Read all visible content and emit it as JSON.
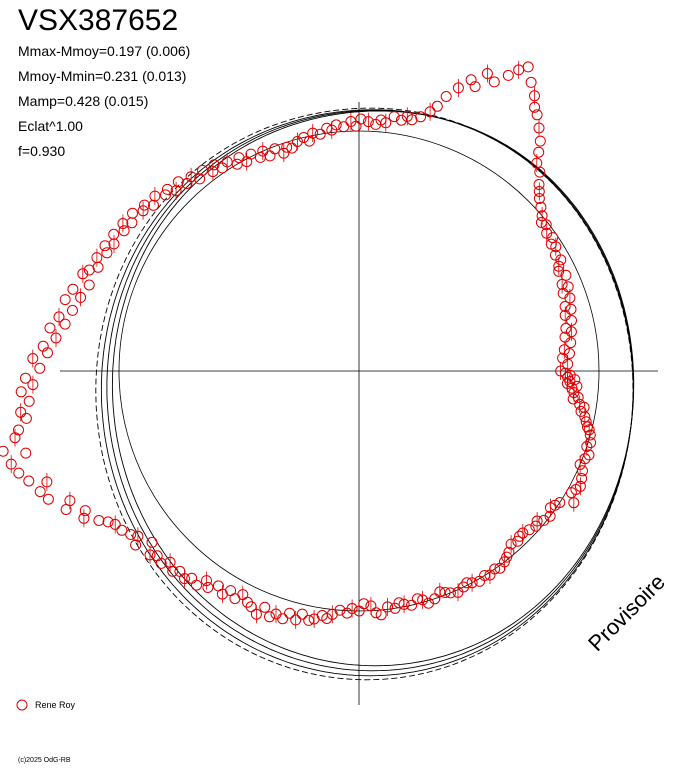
{
  "chart_data": {
    "type": "scatter",
    "title": "VSX387652",
    "stats": [
      "Mmax-Mmoy=0.197 (0.006)",
      "Mmoy-Mmin=0.231 (0.013)",
      "Mamp=0.428 (0.015)",
      "Eclat^1.00",
      "f=0.930"
    ],
    "legend": "Rene Roy",
    "watermark": "Provisoire",
    "copyright": "(c)2025 OdG-RB",
    "series_color": "#dd0000",
    "phase_points": [
      [
        0.0,
        0.84
      ],
      [
        0.01,
        0.86
      ],
      [
        0.02,
        0.88
      ],
      [
        0.03,
        0.87
      ],
      [
        0.04,
        0.9
      ],
      [
        0.05,
        0.88
      ],
      [
        0.06,
        0.87
      ],
      [
        0.07,
        0.91
      ],
      [
        0.08,
        0.89
      ],
      [
        0.1,
        0.9
      ],
      [
        0.12,
        0.92
      ],
      [
        0.13,
        0.9
      ],
      [
        0.15,
        0.93
      ],
      [
        0.16,
        0.95
      ],
      [
        0.18,
        0.94
      ],
      [
        0.2,
        0.96
      ],
      [
        0.22,
        0.97
      ],
      [
        0.24,
        0.98
      ],
      [
        0.25,
        0.99
      ],
      [
        0.27,
        1.0
      ],
      [
        0.3,
        1.01
      ],
      [
        0.32,
        1.0
      ],
      [
        0.35,
        1.02
      ],
      [
        0.37,
        1.01
      ],
      [
        0.4,
        1.0
      ],
      [
        0.42,
        1.02
      ],
      [
        0.45,
        1.03
      ],
      [
        0.48,
        1.04
      ],
      [
        0.5,
        1.03
      ],
      [
        0.52,
        1.02
      ],
      [
        0.55,
        1.05
      ],
      [
        0.58,
        1.0
      ],
      [
        0.6,
        0.99
      ],
      [
        0.62,
        0.98
      ],
      [
        0.65,
        1.0
      ],
      [
        0.68,
        0.99
      ],
      [
        0.7,
        0.97
      ],
      [
        0.72,
        0.98
      ],
      [
        0.75,
        0.97
      ],
      [
        0.78,
        0.96
      ],
      [
        0.8,
        0.96
      ],
      [
        0.82,
        0.97
      ],
      [
        0.85,
        0.96
      ],
      [
        0.88,
        0.98
      ],
      [
        0.9,
        0.99
      ],
      [
        0.92,
        1.0
      ],
      [
        0.95,
        1.01
      ],
      [
        0.97,
        1.0
      ],
      [
        1.0,
        1.01
      ],
      [
        1.02,
        1.0
      ],
      [
        1.05,
        1.01
      ],
      [
        1.08,
        1.0
      ],
      [
        1.1,
        0.99
      ],
      [
        1.12,
        1.0
      ],
      [
        1.15,
        1.01
      ],
      [
        1.18,
        1.0
      ],
      [
        1.2,
        0.99
      ],
      [
        1.22,
        0.98
      ],
      [
        1.25,
        1.0
      ],
      [
        1.28,
        1.01
      ],
      [
        1.3,
        0.99
      ],
      [
        1.32,
        0.98
      ],
      [
        1.35,
        1.0
      ],
      [
        1.38,
        0.99
      ],
      [
        1.4,
        0.98
      ],
      [
        1.42,
        1.0
      ],
      [
        1.45,
        0.99
      ],
      [
        1.48,
        1.02
      ],
      [
        1.5,
        1.01
      ],
      [
        1.52,
        0.98
      ],
      [
        1.55,
        0.97
      ],
      [
        1.57,
        1.0
      ],
      [
        1.6,
        0.99
      ],
      [
        1.62,
        1.01
      ],
      [
        1.65,
        1.0
      ],
      [
        1.68,
        1.02
      ],
      [
        1.7,
        1.04
      ],
      [
        1.72,
        1.03
      ],
      [
        1.75,
        1.05
      ],
      [
        1.77,
        1.06
      ],
      [
        1.8,
        1.04
      ],
      [
        1.82,
        1.07
      ],
      [
        1.85,
        1.05
      ],
      [
        1.87,
        1.08
      ],
      [
        1.9,
        1.07
      ],
      [
        1.92,
        1.09
      ],
      [
        1.95,
        1.06
      ],
      [
        1.97,
        1.1
      ],
      [
        2.0,
        1.08
      ],
      [
        2.02,
        1.07
      ],
      [
        2.05,
        1.05
      ],
      [
        2.07,
        1.08
      ],
      [
        2.1,
        1.06
      ],
      [
        2.12,
        1.09
      ],
      [
        2.15,
        1.07
      ],
      [
        2.18,
        1.1
      ],
      [
        2.2,
        1.08
      ],
      [
        2.22,
        1.12
      ],
      [
        2.25,
        1.11
      ],
      [
        2.27,
        1.13
      ],
      [
        2.3,
        1.12
      ],
      [
        2.32,
        1.14
      ],
      [
        2.35,
        1.12
      ],
      [
        2.37,
        1.15
      ],
      [
        2.4,
        1.14
      ],
      [
        2.42,
        1.16
      ],
      [
        2.45,
        1.12
      ],
      [
        2.48,
        1.18
      ],
      [
        2.5,
        1.15
      ],
      [
        2.52,
        1.17
      ],
      [
        2.55,
        1.19
      ],
      [
        2.58,
        1.2
      ],
      [
        2.6,
        1.22
      ],
      [
        2.62,
        1.25
      ],
      [
        2.65,
        1.3
      ],
      [
        2.67,
        1.28
      ],
      [
        2.7,
        1.35
      ],
      [
        2.72,
        1.32
      ],
      [
        2.75,
        1.4
      ],
      [
        2.78,
        1.42
      ],
      [
        2.8,
        1.38
      ],
      [
        2.82,
        1.45
      ],
      [
        2.85,
        1.48
      ],
      [
        2.88,
        1.5
      ],
      [
        2.9,
        1.43
      ],
      [
        2.92,
        1.52
      ],
      [
        2.95,
        1.46
      ],
      [
        2.97,
        1.44
      ],
      [
        3.0,
        1.4
      ],
      [
        3.02,
        1.42
      ],
      [
        3.05,
        1.38
      ],
      [
        3.08,
        1.41
      ],
      [
        3.1,
        1.36
      ],
      [
        3.12,
        1.39
      ],
      [
        3.15,
        1.33
      ],
      [
        3.18,
        1.36
      ],
      [
        3.2,
        1.3
      ],
      [
        3.22,
        1.32
      ],
      [
        3.25,
        1.27
      ],
      [
        3.28,
        1.3
      ],
      [
        3.3,
        1.24
      ],
      [
        3.32,
        1.27
      ],
      [
        3.35,
        1.22
      ],
      [
        3.38,
        1.26
      ],
      [
        3.4,
        1.2
      ],
      [
        3.42,
        1.24
      ],
      [
        3.45,
        1.18
      ],
      [
        3.48,
        1.22
      ],
      [
        3.5,
        1.2
      ],
      [
        3.52,
        1.17
      ],
      [
        3.55,
        1.19
      ],
      [
        3.58,
        1.16
      ],
      [
        3.6,
        1.18
      ],
      [
        3.62,
        1.15
      ],
      [
        3.65,
        1.17
      ],
      [
        3.68,
        1.14
      ],
      [
        3.7,
        1.16
      ],
      [
        3.72,
        1.13
      ],
      [
        3.75,
        1.15
      ],
      [
        3.78,
        1.12
      ],
      [
        3.8,
        1.13
      ],
      [
        3.82,
        1.1
      ],
      [
        3.85,
        1.12
      ],
      [
        3.88,
        1.09
      ],
      [
        3.9,
        1.1
      ],
      [
        3.92,
        1.07
      ],
      [
        3.95,
        1.09
      ],
      [
        3.97,
        1.06
      ],
      [
        4.0,
        1.07
      ],
      [
        4.02,
        1.04
      ],
      [
        4.05,
        1.06
      ],
      [
        4.08,
        1.03
      ],
      [
        4.1,
        1.05
      ],
      [
        4.12,
        1.02
      ],
      [
        4.15,
        1.03
      ],
      [
        4.18,
        1.0
      ],
      [
        4.2,
        1.02
      ],
      [
        4.22,
        0.99
      ],
      [
        4.25,
        1.01
      ],
      [
        4.28,
        0.98
      ],
      [
        4.3,
        1.0
      ],
      [
        4.32,
        0.97
      ],
      [
        4.35,
        0.99
      ],
      [
        4.38,
        0.96
      ],
      [
        4.4,
        0.98
      ],
      [
        4.42,
        0.97
      ],
      [
        4.45,
        0.99
      ],
      [
        4.48,
        1.0
      ],
      [
        4.5,
        0.98
      ],
      [
        4.52,
        1.01
      ],
      [
        4.55,
        1.0
      ],
      [
        4.58,
        1.02
      ],
      [
        4.6,
        1.01
      ],
      [
        4.62,
        1.03
      ],
      [
        4.65,
        1.02
      ],
      [
        4.68,
        1.04
      ],
      [
        4.7,
        1.02
      ],
      [
        4.72,
        1.05
      ],
      [
        4.75,
        1.04
      ],
      [
        4.78,
        1.03
      ],
      [
        4.8,
        1.05
      ],
      [
        4.82,
        1.04
      ],
      [
        4.85,
        1.07
      ],
      [
        4.88,
        1.06
      ],
      [
        4.9,
        1.08
      ],
      [
        4.92,
        1.07
      ],
      [
        4.95,
        1.09
      ],
      [
        4.98,
        1.12
      ],
      [
        5.0,
        1.15
      ],
      [
        5.02,
        1.2
      ],
      [
        5.05,
        1.25
      ],
      [
        5.08,
        1.3
      ],
      [
        5.1,
        1.28
      ],
      [
        5.12,
        1.35
      ],
      [
        5.15,
        1.33
      ],
      [
        5.18,
        1.38
      ],
      [
        5.2,
        1.42
      ],
      [
        5.22,
        1.45
      ],
      [
        5.25,
        1.4
      ],
      [
        5.28,
        1.36
      ],
      [
        5.3,
        1.32
      ],
      [
        5.32,
        1.3
      ],
      [
        5.35,
        1.26
      ],
      [
        5.38,
        1.22
      ],
      [
        5.4,
        1.18
      ],
      [
        5.42,
        1.14
      ],
      [
        5.45,
        1.12
      ],
      [
        5.48,
        1.08
      ],
      [
        5.5,
        1.06
      ],
      [
        5.52,
        1.04
      ],
      [
        5.55,
        1.02
      ],
      [
        5.58,
        1.0
      ],
      [
        5.6,
        0.98
      ],
      [
        5.62,
        0.99
      ],
      [
        5.65,
        0.97
      ],
      [
        5.68,
        0.98
      ],
      [
        5.7,
        0.96
      ],
      [
        5.72,
        0.97
      ],
      [
        5.75,
        0.95
      ],
      [
        5.78,
        0.96
      ],
      [
        5.8,
        0.94
      ],
      [
        5.82,
        0.93
      ],
      [
        5.85,
        0.95
      ],
      [
        5.88,
        0.92
      ],
      [
        5.9,
        0.94
      ],
      [
        5.92,
        0.91
      ],
      [
        5.95,
        0.93
      ],
      [
        5.98,
        0.9
      ],
      [
        6.0,
        0.92
      ],
      [
        6.02,
        0.89
      ],
      [
        6.05,
        0.91
      ],
      [
        6.08,
        0.88
      ],
      [
        6.1,
        0.9
      ],
      [
        6.12,
        0.87
      ],
      [
        6.15,
        0.89
      ],
      [
        6.18,
        0.86
      ],
      [
        6.2,
        0.88
      ],
      [
        6.22,
        0.85
      ],
      [
        6.25,
        0.87
      ]
    ]
  }
}
